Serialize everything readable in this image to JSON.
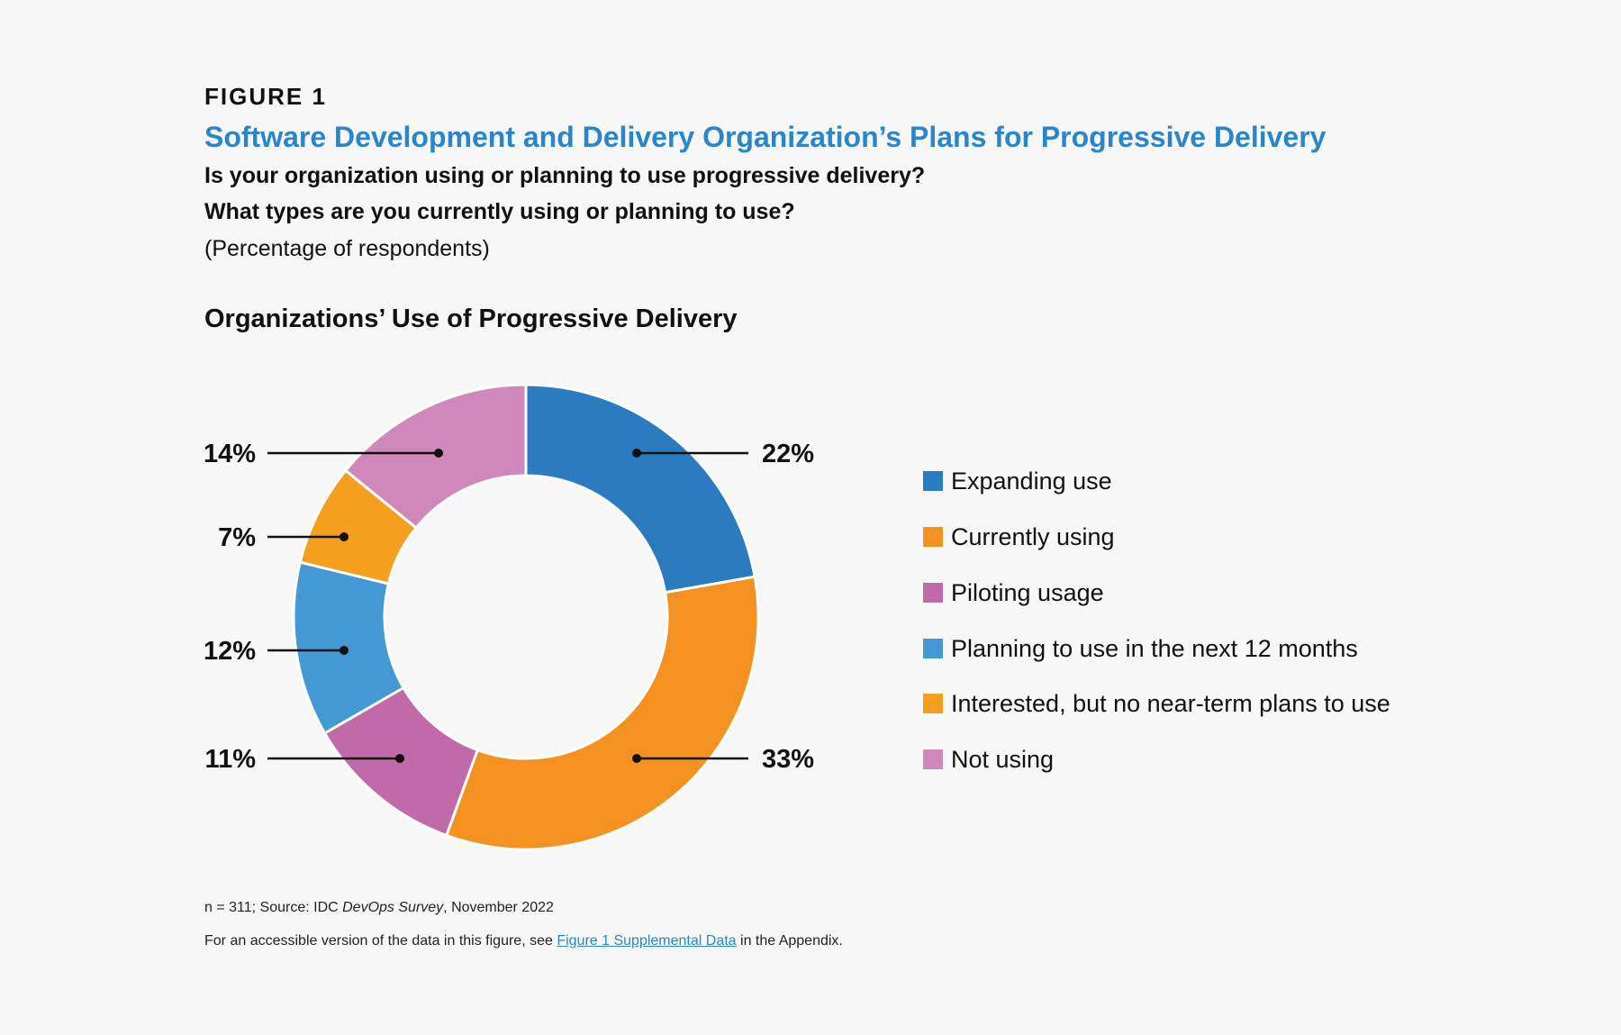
{
  "figure_label": "FIGURE 1",
  "title": "Software Development and Delivery Organization’s Plans for Progressive Delivery",
  "questions": [
    "Is your organization using or planning to use progressive delivery?",
    "What types are you currently using or planning to use?"
  ],
  "unit_note": "(Percentage of respondents)",
  "chart_data": {
    "type": "pie",
    "donut": true,
    "title": "Organizations’ Use of Progressive Delivery",
    "start": "12 o'clock, clockwise",
    "legend_position": "right",
    "categories": [
      "Expanding use",
      "Currently using",
      "Piloting usage",
      "Planning to use in the next 12 months",
      "Interested, but no near-term plans to use",
      "Not using"
    ],
    "values": [
      22,
      33,
      11,
      12,
      7,
      14
    ],
    "labels": [
      "22%",
      "33%",
      "11%",
      "12%",
      "7%",
      "14%"
    ],
    "colors": [
      "#2a7bbf",
      "#f39121",
      "#c06aa8",
      "#4399d4",
      "#f59f1e",
      "#d088bb"
    ]
  },
  "footnote": {
    "source_prefix": "n = 311; Source: IDC ",
    "source_italic": "DevOps Survey",
    "source_suffix": ", November 2022",
    "access_prefix": "For an accessible version of the data in this figure, see ",
    "access_link": "Figure 1 Supplemental Data",
    "access_suffix": " in the Appendix."
  }
}
